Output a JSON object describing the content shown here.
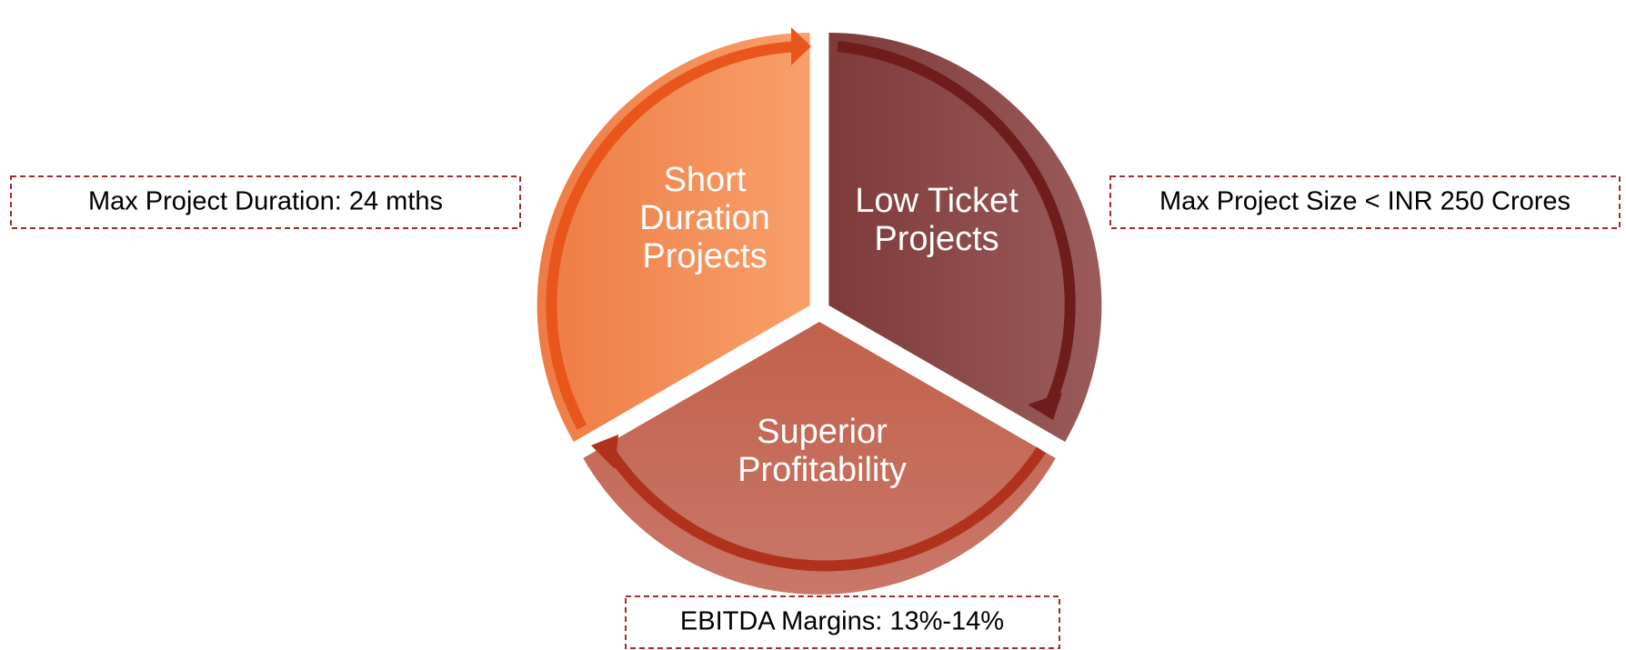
{
  "segments": [
    {
      "lines": [
        "Short",
        "Duration",
        "Projects"
      ]
    },
    {
      "lines": [
        "Low Ticket",
        "Projects"
      ]
    },
    {
      "lines": [
        "Superior",
        "Profitability"
      ]
    }
  ],
  "callouts": [
    "Max Project Duration: 24 mths",
    "Max Project Size < INR 250 Crores",
    "EBITDA Margins: 13%-14%"
  ]
}
